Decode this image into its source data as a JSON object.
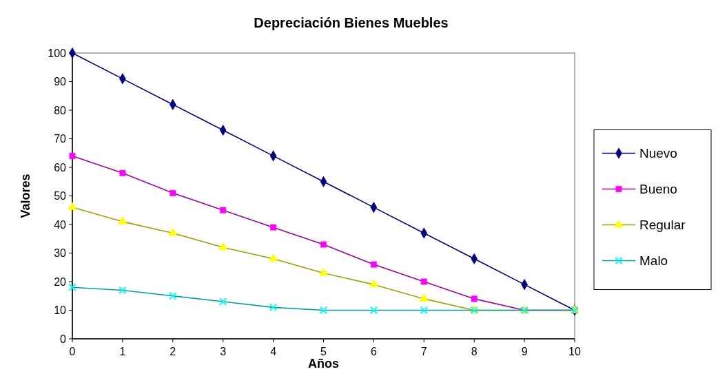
{
  "chart_data": {
    "type": "line",
    "title": "Depreciación Bienes Muebles",
    "xlabel": "Años",
    "ylabel": "Valores",
    "x": [
      0,
      1,
      2,
      3,
      4,
      5,
      6,
      7,
      8,
      9,
      10
    ],
    "xlim": [
      0,
      10
    ],
    "xticks": [
      0,
      1,
      2,
      3,
      4,
      5,
      6,
      7,
      8,
      9,
      10
    ],
    "ylim": [
      0,
      100
    ],
    "yticks": [
      0,
      10,
      20,
      30,
      40,
      50,
      60,
      70,
      80,
      90,
      100
    ],
    "grid": false,
    "legend": "right",
    "series": [
      {
        "name": "Nuevo",
        "color": "#000080",
        "marker": "diamond",
        "values": [
          100,
          91,
          82,
          73,
          64,
          55,
          46,
          37,
          28,
          19,
          10
        ]
      },
      {
        "name": "Bueno",
        "color": "#ff00ff",
        "marker": "square",
        "values": [
          64,
          58,
          51,
          45,
          39,
          33,
          26,
          20,
          14,
          10,
          10
        ]
      },
      {
        "name": "Regular",
        "color": "#ffff00",
        "marker": "triangle",
        "values": [
          46,
          41,
          37,
          32,
          28,
          23,
          19,
          14,
          10,
          10,
          10
        ]
      },
      {
        "name": "Malo",
        "color": "#00ffff",
        "marker": "cross",
        "values": [
          18,
          17,
          15,
          13,
          11,
          10,
          10,
          10,
          10,
          10,
          10
        ]
      }
    ]
  }
}
